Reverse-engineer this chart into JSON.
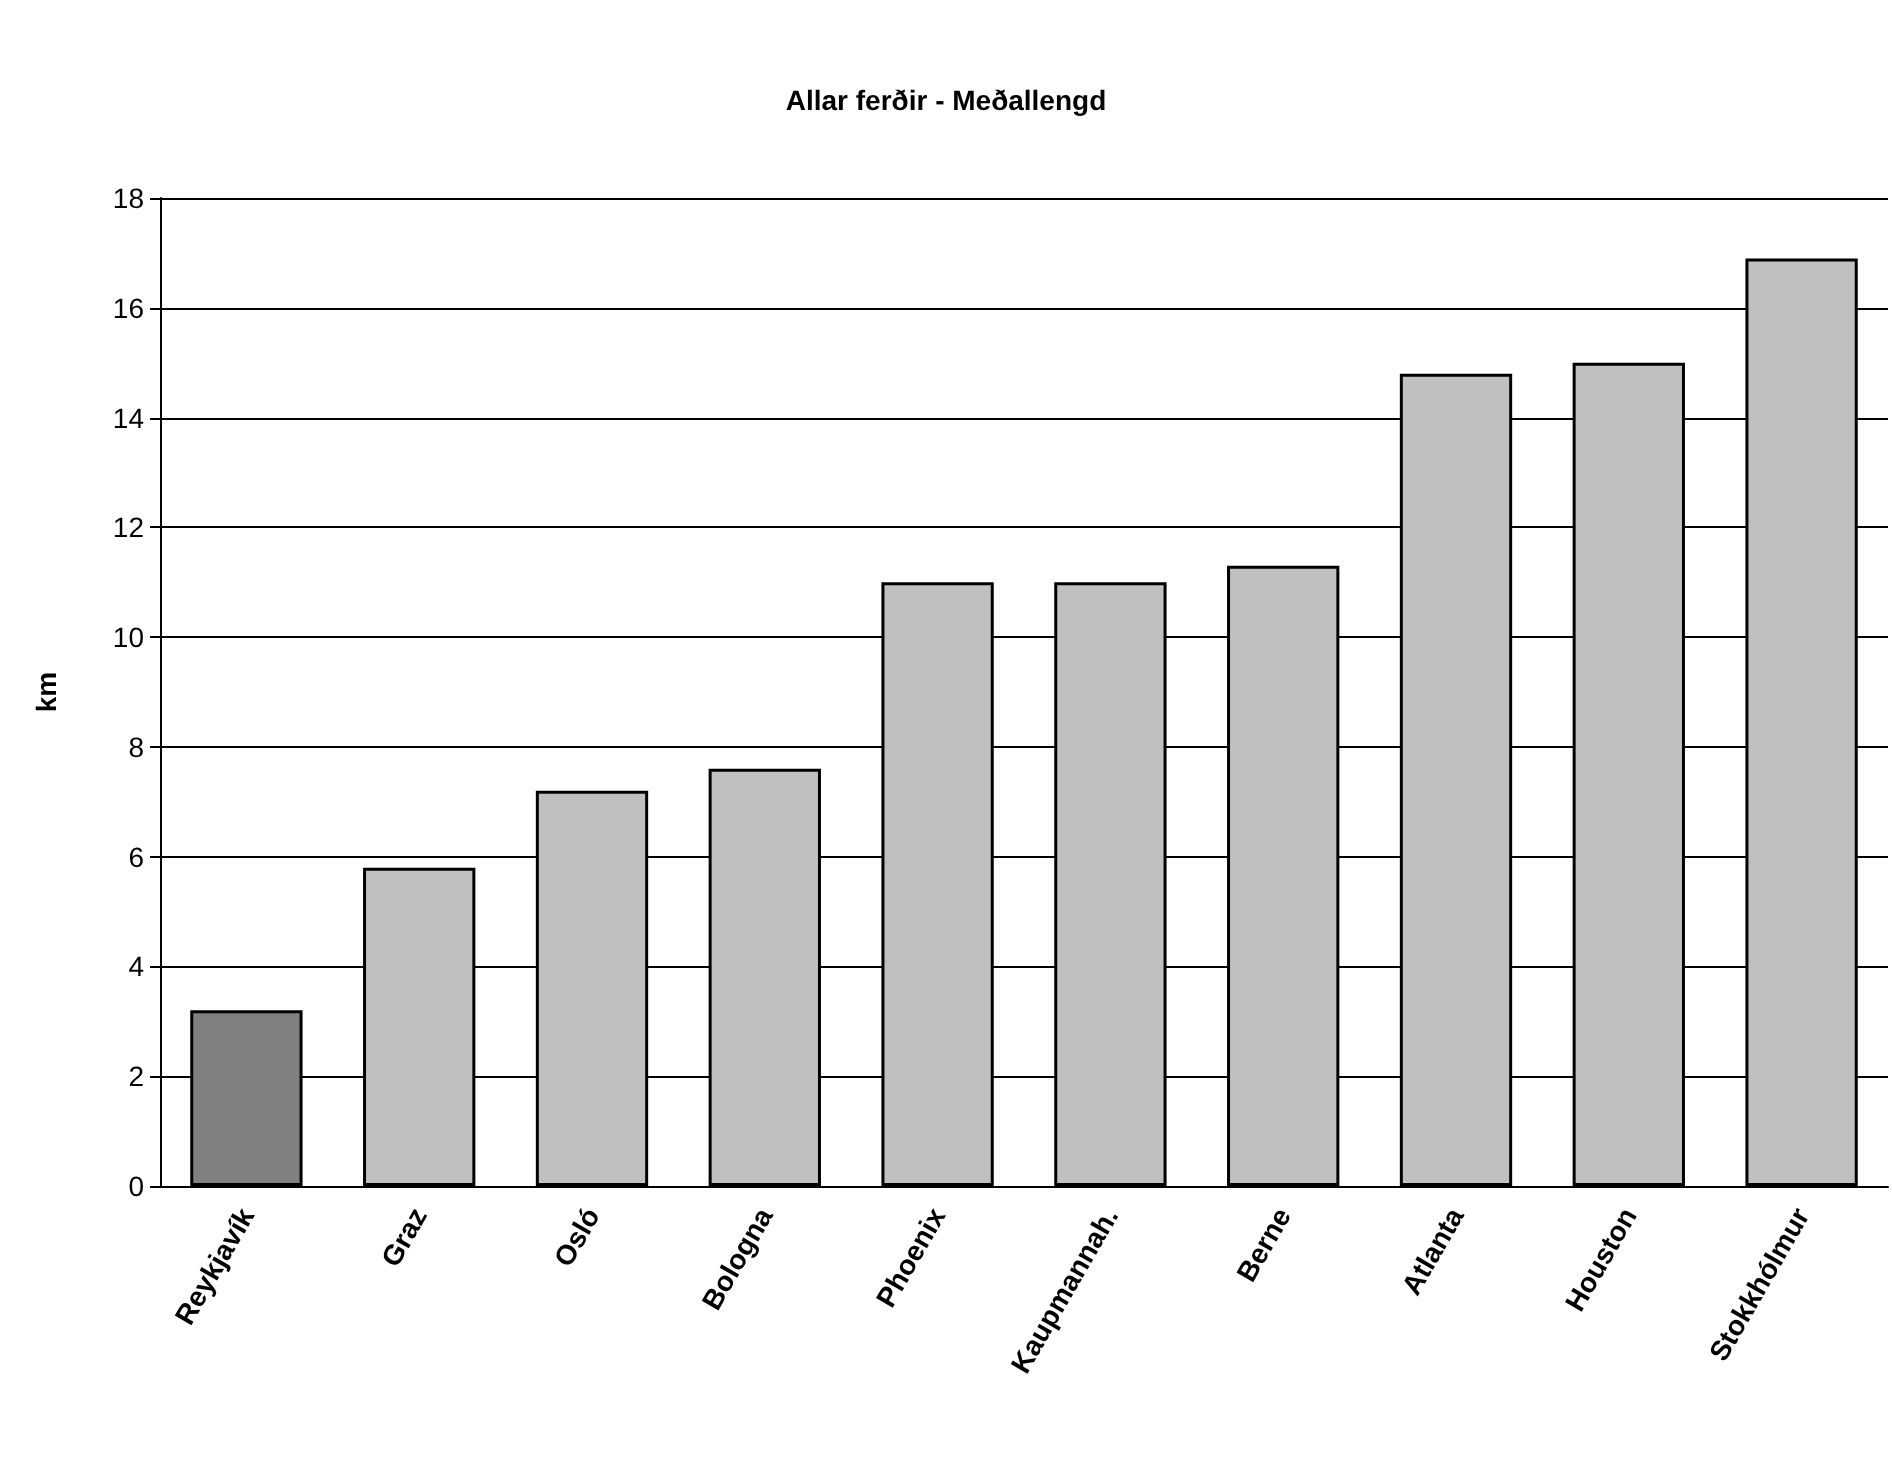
{
  "chart_data": {
    "type": "bar",
    "title": "Allar ferðir - Meðallengd",
    "ylabel": "km",
    "categories": [
      "Reykjavík",
      "Graz",
      "Osló",
      "Bologna",
      "Phoenix",
      "Kaupmannah.",
      "Berne",
      "Atlanta",
      "Houston",
      "Stokkhólmur"
    ],
    "values": [
      3.2,
      5.8,
      7.2,
      7.6,
      11.0,
      11.0,
      11.3,
      14.8,
      15.0,
      16.9
    ],
    "colors": [
      "#808080",
      "#c0c0c0",
      "#c0c0c0",
      "#c0c0c0",
      "#c0c0c0",
      "#c0c0c0",
      "#c0c0c0",
      "#c0c0c0",
      "#c0c0c0",
      "#c0c0c0"
    ],
    "ylim": [
      0,
      18
    ],
    "yticks": [
      0,
      2,
      4,
      6,
      8,
      10,
      12,
      14,
      16,
      18
    ],
    "grid": "y"
  }
}
